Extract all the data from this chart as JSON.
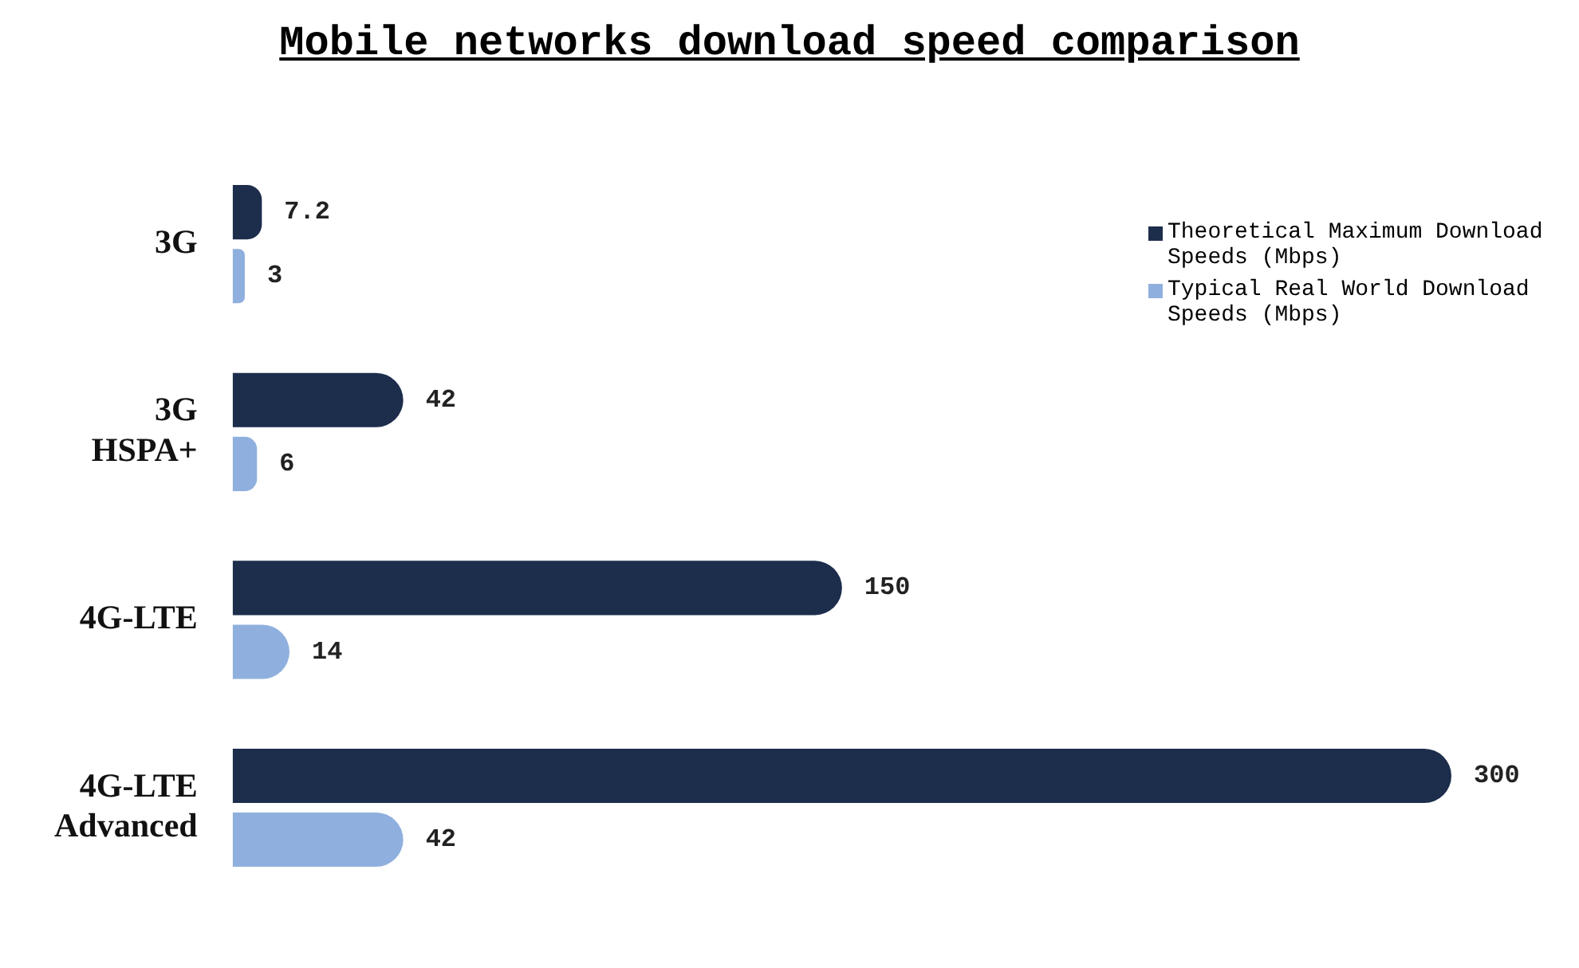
{
  "chart_data": {
    "type": "bar",
    "orientation": "horizontal",
    "title": "Mobile networks download speed comparison",
    "categories": [
      "3G",
      "3G HSPA+",
      "4G-LTE",
      "4G-LTE Advanced"
    ],
    "series": [
      {
        "name": "Theoretical Maximum Download Speeds (Mbps)",
        "color": "#1d2d4c",
        "values": [
          7.2,
          42,
          150,
          300
        ]
      },
      {
        "name": "Typical Real World Download Speeds (Mbps)",
        "color": "#8fb0de",
        "values": [
          3,
          6,
          14,
          42
        ]
      }
    ],
    "data_labels": true,
    "legend": "top right"
  }
}
